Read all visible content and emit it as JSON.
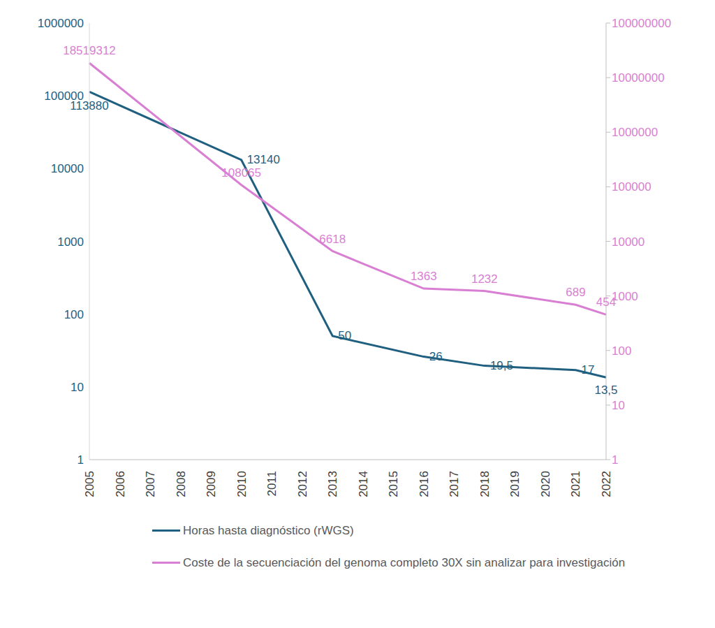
{
  "chart_data": {
    "type": "line",
    "categories": [
      "2005",
      "2006",
      "2007",
      "2008",
      "2009",
      "2010",
      "2011",
      "2012",
      "2013",
      "2014",
      "2015",
      "2016",
      "2017",
      "2018",
      "2019",
      "2020",
      "2021",
      "2022"
    ],
    "series": [
      {
        "name": "Horas hasta diagnóstico (rWGS)",
        "color": "#1f5f7f",
        "values": [
          113880,
          null,
          null,
          null,
          null,
          13140,
          null,
          null,
          50,
          null,
          null,
          26,
          null,
          19.5,
          null,
          null,
          17,
          13.5
        ],
        "value_labels": [
          "113880",
          null,
          null,
          null,
          null,
          "13140",
          null,
          null,
          "50",
          null,
          null,
          "26",
          null,
          "19,5",
          null,
          null,
          "17",
          "13,5"
        ]
      },
      {
        "name": "Coste de la secuenciación del genoma completo 30X sin analizar para investigación",
        "color": "#d87fd3",
        "axis": "y2",
        "values": [
          18519312,
          null,
          null,
          null,
          null,
          108065,
          null,
          null,
          6618,
          null,
          null,
          1363,
          null,
          1232,
          null,
          null,
          689,
          454
        ]
      }
    ],
    "ylim": [
      1,
      1000000
    ],
    "yticks": [
      1,
      10,
      100,
      1000,
      10000,
      100000,
      1000000
    ],
    "y2lim": [
      1,
      100000000
    ],
    "y2ticks": [
      1,
      10,
      100,
      1000,
      10000,
      100000,
      1000000,
      10000000,
      100000000
    ],
    "log": "y",
    "grid": false,
    "legend": "bottom",
    "data_labels": true
  }
}
